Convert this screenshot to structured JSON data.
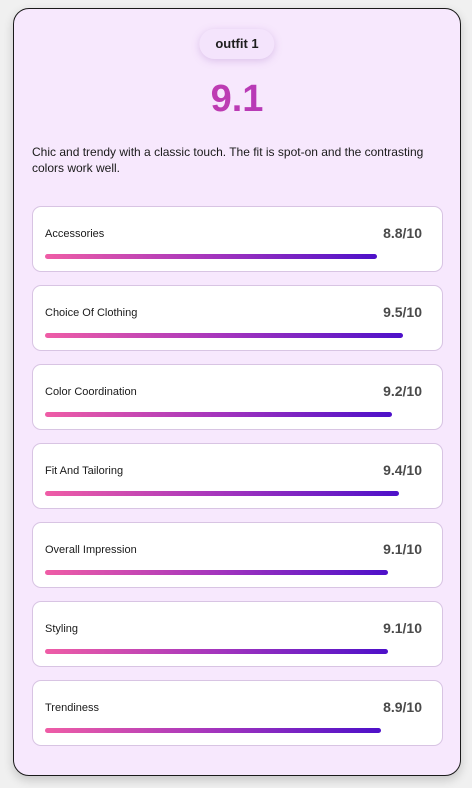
{
  "outfit": {
    "name": "outfit 1",
    "overall_score": "9.1",
    "summary": "Chic and trendy with a classic touch. The fit is spot-on and the contrasting colors work well."
  },
  "metrics": [
    {
      "label": "Accessories",
      "value": "8.8/10",
      "score": 8.8
    },
    {
      "label": "Choice Of Clothing",
      "value": "9.5/10",
      "score": 9.5
    },
    {
      "label": "Color Coordination",
      "value": "9.2/10",
      "score": 9.2
    },
    {
      "label": "Fit And Tailoring",
      "value": "9.4/10",
      "score": 9.4
    },
    {
      "label": "Overall Impression",
      "value": "9.1/10",
      "score": 9.1
    },
    {
      "label": "Styling",
      "value": "9.1/10",
      "score": 9.1
    },
    {
      "label": "Trendiness",
      "value": "8.9/10",
      "score": 8.9
    }
  ],
  "max_score": 10,
  "colors": {
    "card_background": "#f7e8fd",
    "score_gradient_start": "#d9479f",
    "score_gradient_end": "#9c2fc9",
    "bar_gradient_start": "#ef5da6",
    "bar_gradient_end": "#4d10c9"
  }
}
